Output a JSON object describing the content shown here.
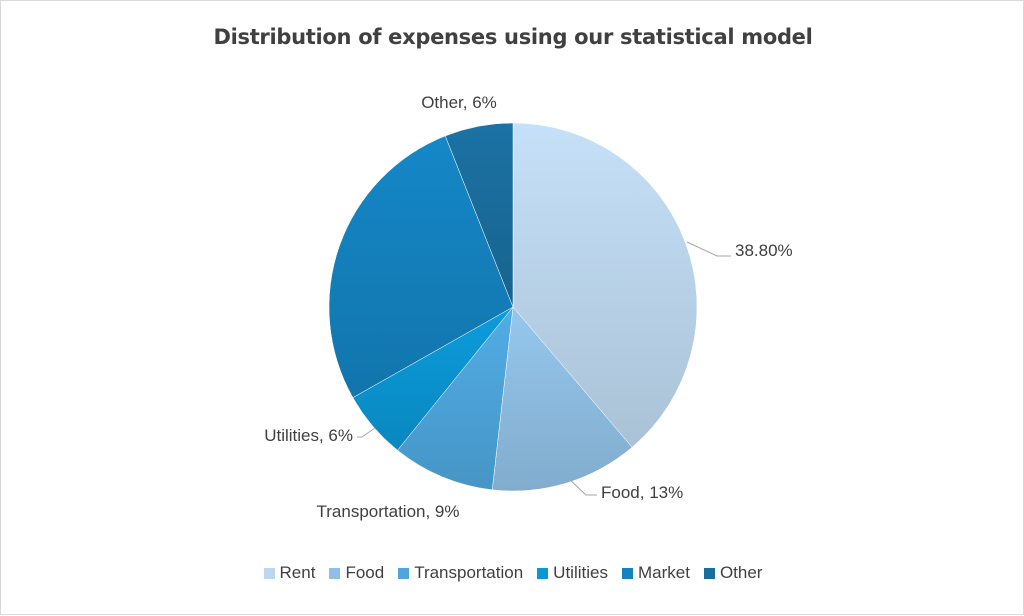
{
  "chart_data": {
    "type": "pie",
    "title": "Distribution of expenses using our statistical model",
    "categories": [
      "Rent",
      "Food",
      "Transportation",
      "Utilities",
      "Market",
      "Other"
    ],
    "values": [
      38.8,
      13,
      9,
      6,
      27.2,
      6
    ],
    "data_labels": [
      "38.80%",
      "Food, 13%",
      "Transportation, 9%",
      "Utilities, 6%",
      "",
      "Other, 6%"
    ],
    "colors": [
      "#bdd7ee",
      "#8fbfe4",
      "#4ea6dc",
      "#0b96d4",
      "#1482bf",
      "#1a6e9e"
    ],
    "legend_position": "bottom",
    "start_angle_deg": 0,
    "direction": "clockwise"
  }
}
